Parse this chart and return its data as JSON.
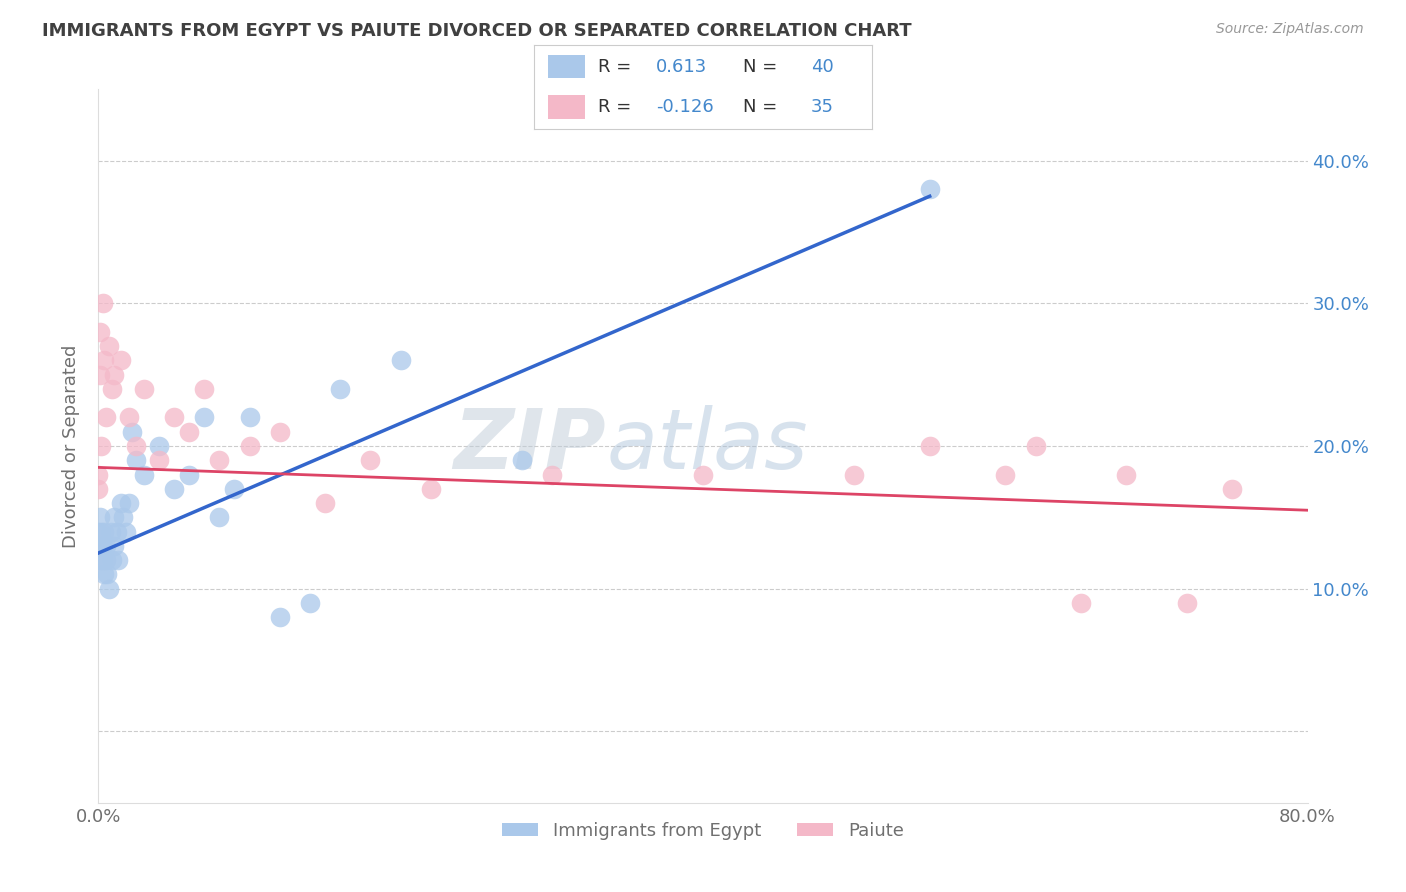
{
  "title": "IMMIGRANTS FROM EGYPT VS PAIUTE DIVORCED OR SEPARATED CORRELATION CHART",
  "source": "Source: ZipAtlas.com",
  "ylabel": "Divorced or Separated",
  "legend_labels": [
    "Immigrants from Egypt",
    "Paiute"
  ],
  "R1": 0.613,
  "N1": 40,
  "R2": -0.126,
  "N2": 35,
  "xlim": [
    0.0,
    0.8
  ],
  "ylim": [
    -0.05,
    0.45
  ],
  "yticks": [
    0.0,
    0.1,
    0.2,
    0.3,
    0.4
  ],
  "xticks": [
    0.0,
    0.2,
    0.4,
    0.6,
    0.8
  ],
  "blue_scatter_x": [
    0.0,
    0.0,
    0.001,
    0.001,
    0.002,
    0.002,
    0.003,
    0.003,
    0.004,
    0.004,
    0.005,
    0.005,
    0.006,
    0.007,
    0.008,
    0.009,
    0.01,
    0.01,
    0.012,
    0.013,
    0.015,
    0.016,
    0.018,
    0.02,
    0.022,
    0.025,
    0.03,
    0.04,
    0.05,
    0.06,
    0.07,
    0.08,
    0.09,
    0.1,
    0.12,
    0.14,
    0.16,
    0.2,
    0.28,
    0.55
  ],
  "blue_scatter_y": [
    0.13,
    0.14,
    0.12,
    0.15,
    0.13,
    0.14,
    0.12,
    0.13,
    0.11,
    0.14,
    0.12,
    0.13,
    0.11,
    0.1,
    0.14,
    0.12,
    0.13,
    0.15,
    0.14,
    0.12,
    0.16,
    0.15,
    0.14,
    0.16,
    0.21,
    0.19,
    0.18,
    0.2,
    0.17,
    0.18,
    0.22,
    0.15,
    0.17,
    0.22,
    0.08,
    0.09,
    0.24,
    0.26,
    0.19,
    0.38
  ],
  "pink_scatter_x": [
    0.0,
    0.0,
    0.001,
    0.001,
    0.002,
    0.003,
    0.004,
    0.005,
    0.007,
    0.009,
    0.01,
    0.015,
    0.02,
    0.025,
    0.03,
    0.04,
    0.05,
    0.06,
    0.07,
    0.08,
    0.1,
    0.12,
    0.15,
    0.18,
    0.22,
    0.3,
    0.4,
    0.5,
    0.55,
    0.6,
    0.62,
    0.65,
    0.68,
    0.72,
    0.75
  ],
  "pink_scatter_y": [
    0.17,
    0.18,
    0.25,
    0.28,
    0.2,
    0.3,
    0.26,
    0.22,
    0.27,
    0.24,
    0.25,
    0.26,
    0.22,
    0.2,
    0.24,
    0.19,
    0.22,
    0.21,
    0.24,
    0.19,
    0.2,
    0.21,
    0.16,
    0.19,
    0.17,
    0.18,
    0.18,
    0.18,
    0.2,
    0.18,
    0.2,
    0.09,
    0.18,
    0.09,
    0.17
  ],
  "blue_color": "#aac8ea",
  "pink_color": "#f4b8c8",
  "blue_line_color": "#3366cc",
  "pink_line_color": "#dd4466",
  "background_color": "#ffffff",
  "watermark_text": "ZIPatlas",
  "grid_color": "#cccccc",
  "title_color": "#404040",
  "axis_label_color": "#707070",
  "tick_color_right": "#4488cc",
  "tick_color_bottom": "#707070",
  "legend_box_color": "#e8e8e8"
}
